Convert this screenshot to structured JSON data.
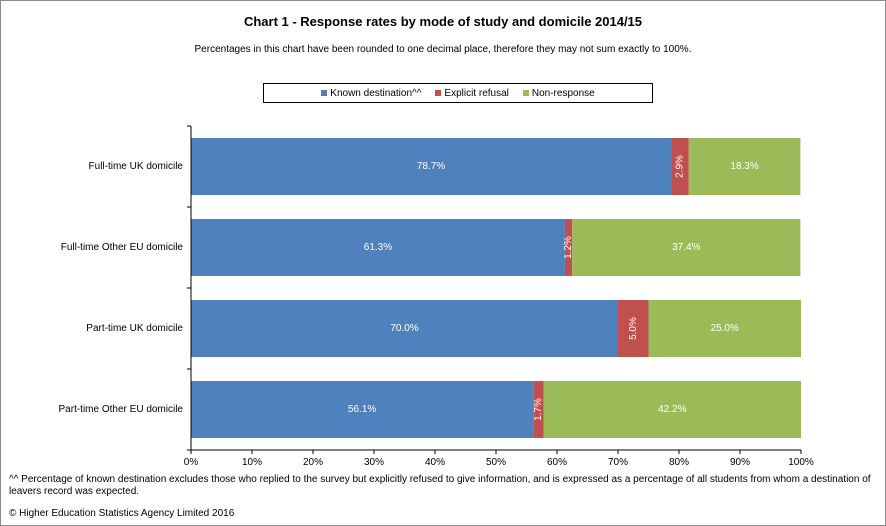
{
  "title": "Chart 1 - Response  rates by mode of study  and domicile 2014/15",
  "subtitle": "Percentages in this chart have been rounded to one decimal place, therefore they may not sum exactly to 100%.",
  "footnote": "^^ Percentage of known destination excludes those who replied to the survey but explicitly refused to give information, and is expressed as a percentage of all students from whom a destination of leavers record was expected.",
  "copyright": "© Higher Education Statistics Agency Limited 2016",
  "chart_data": {
    "type": "bar",
    "orientation": "horizontal",
    "stacked": true,
    "title": "Chart 1 - Response  rates by mode of study  and domicile 2014/15",
    "categories": [
      "Full-time UK domicile",
      "Full-time Other EU domicile",
      "Part-time UK domicile",
      "Part-time Other EU domicile"
    ],
    "series": [
      {
        "name": "Known destination^^",
        "color": "#4f81bd",
        "values": [
          78.7,
          61.3,
          70.0,
          56.1
        ],
        "labels": [
          "78.7%",
          "61.3%",
          "70.0%",
          "56.1%"
        ],
        "label_rotated": false
      },
      {
        "name": "Explicit refusal",
        "color": "#c0504d",
        "values": [
          2.9,
          1.2,
          5.0,
          1.7
        ],
        "labels": [
          "2.9%",
          "1.2%",
          "5.0%",
          "1.7%"
        ],
        "label_rotated": true
      },
      {
        "name": "Non-response",
        "color": "#9bbb59",
        "values": [
          18.3,
          37.4,
          25.0,
          42.2
        ],
        "labels": [
          "18.3%",
          "37.4%",
          "25.0%",
          "42.2%"
        ],
        "label_rotated": false
      }
    ],
    "xlim": [
      0,
      100
    ],
    "xticks": [
      0,
      10,
      20,
      30,
      40,
      50,
      60,
      70,
      80,
      90,
      100
    ],
    "xtick_labels": [
      "0%",
      "10%",
      "20%",
      "30%",
      "40%",
      "50%",
      "60%",
      "70%",
      "80%",
      "90%",
      "100%"
    ],
    "grid": false,
    "legend_position": "top"
  }
}
